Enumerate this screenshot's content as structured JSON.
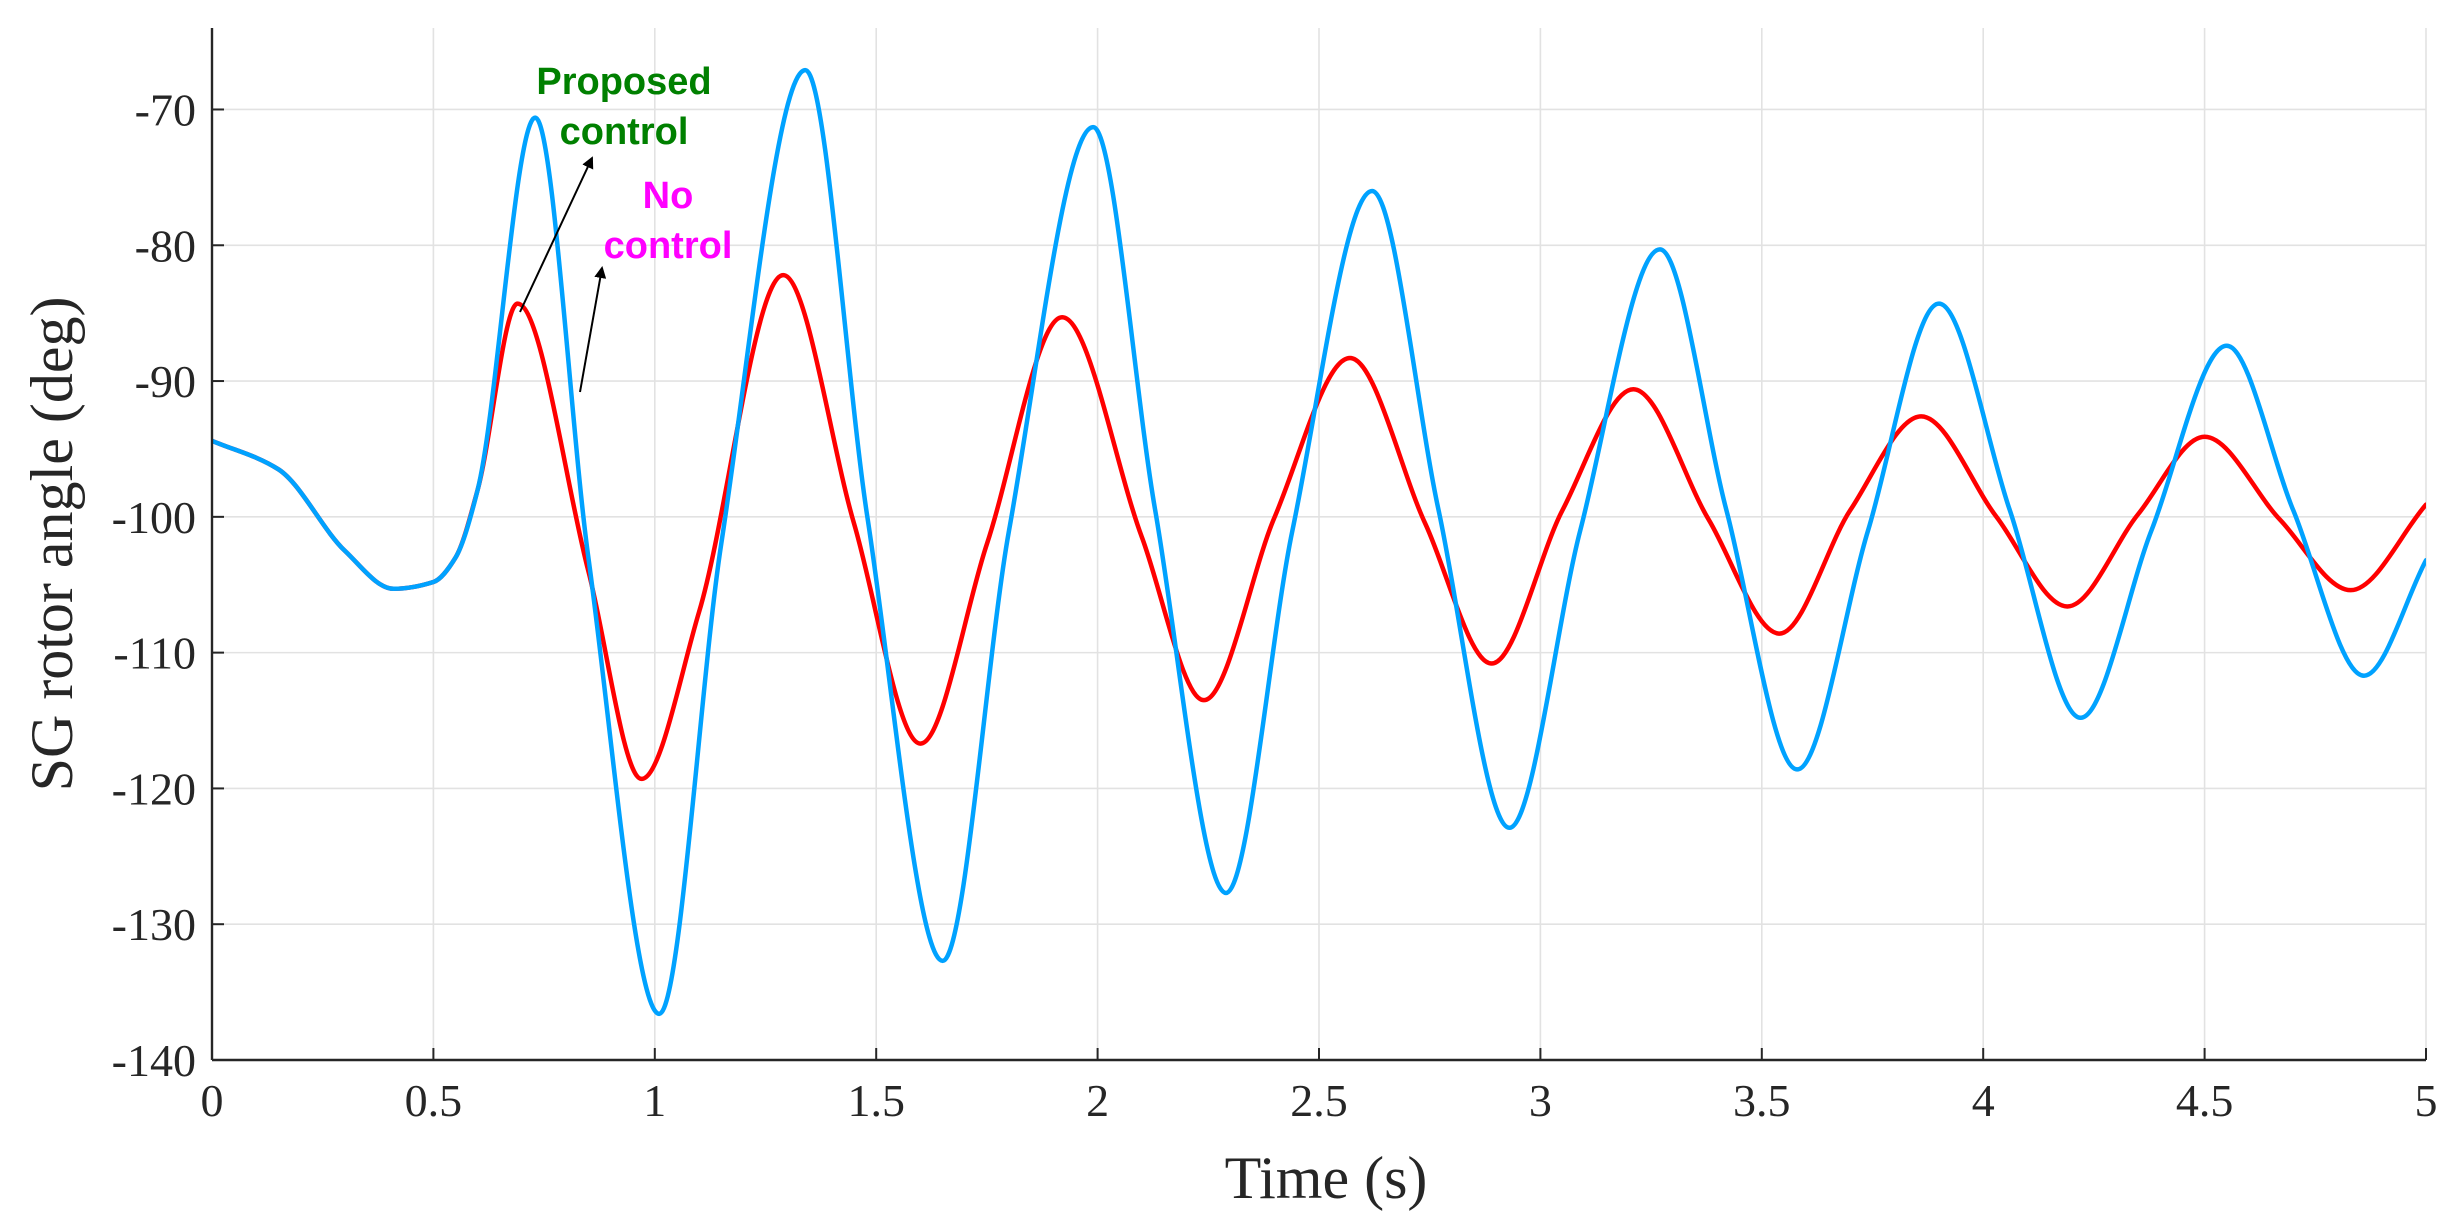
{
  "chart_data": {
    "type": "line",
    "title": "",
    "xlabel": "Time (s)",
    "ylabel": "SG rotor angle (deg)",
    "xlim": [
      0,
      5
    ],
    "ylim": [
      -140,
      -64
    ],
    "xticks": [
      0,
      0.5,
      1,
      1.5,
      2,
      2.5,
      3,
      3.5,
      4,
      4.5,
      5
    ],
    "xtick_labels": [
      "0",
      "0.5",
      "1",
      "1.5",
      "2",
      "2.5",
      "3",
      "3.5",
      "4",
      "4.5",
      "5"
    ],
    "yticks": [
      -140,
      -130,
      -120,
      -110,
      -100,
      -90,
      -80,
      -70
    ],
    "ytick_labels": [
      "-140",
      "-130",
      "-120",
      "-110",
      "-100",
      "-90",
      "-80",
      "-70"
    ],
    "grid": true,
    "series": [
      {
        "name": "No control",
        "color": "#ff0000",
        "x": [
          0,
          0.15,
          0.3,
          0.41,
          0.5,
          0.55,
          0.6,
          0.69,
          0.85,
          0.97,
          1.1,
          1.29,
          1.45,
          1.6,
          1.75,
          1.92,
          2.1,
          2.24,
          2.4,
          2.57,
          2.74,
          2.89,
          3.05,
          3.21,
          3.38,
          3.54,
          3.7,
          3.86,
          4.03,
          4.19,
          4.35,
          4.5,
          4.67,
          4.83,
          5.0
        ],
        "y": [
          -94.4,
          -96.5,
          -102.5,
          -105.3,
          -104.8,
          -103.0,
          -98.0,
          -84.3,
          -104.0,
          -119.3,
          -107.0,
          -82.2,
          -100.5,
          -116.7,
          -102.0,
          -85.3,
          -101.5,
          -113.5,
          -100.0,
          -88.3,
          -100.5,
          -110.8,
          -99.5,
          -90.6,
          -100.2,
          -108.6,
          -99.5,
          -92.6,
          -100.0,
          -106.6,
          -99.8,
          -94.1,
          -100.2,
          -105.4,
          -99.1
        ]
      },
      {
        "name": "Proposed control",
        "color": "#00a2ff",
        "x": [
          0,
          0.15,
          0.3,
          0.41,
          0.5,
          0.55,
          0.6,
          0.73,
          0.85,
          1.01,
          1.15,
          1.34,
          1.48,
          1.65,
          1.8,
          1.99,
          2.13,
          2.29,
          2.44,
          2.62,
          2.77,
          2.93,
          3.09,
          3.27,
          3.42,
          3.58,
          3.74,
          3.9,
          4.06,
          4.22,
          4.38,
          4.55,
          4.7,
          4.86,
          5.0
        ],
        "y": [
          -94.4,
          -96.5,
          -102.5,
          -105.3,
          -104.8,
          -103.0,
          -98.0,
          -70.6,
          -103.0,
          -136.6,
          -102.0,
          -67.1,
          -100.0,
          -132.7,
          -101.0,
          -71.3,
          -99.5,
          -127.7,
          -101.0,
          -76.0,
          -99.5,
          -122.9,
          -101.0,
          -80.3,
          -99.5,
          -118.6,
          -101.0,
          -84.3,
          -99.5,
          -114.8,
          -101.0,
          -87.4,
          -99.5,
          -111.7,
          -103.2
        ]
      }
    ],
    "annotations": [
      {
        "text_lines": [
          "Proposed",
          "control"
        ],
        "color": "#008000",
        "points_to": "Proposed control"
      },
      {
        "text_lines": [
          "No",
          "control"
        ],
        "color": "#ff00ff",
        "points_to": "No control"
      }
    ]
  }
}
